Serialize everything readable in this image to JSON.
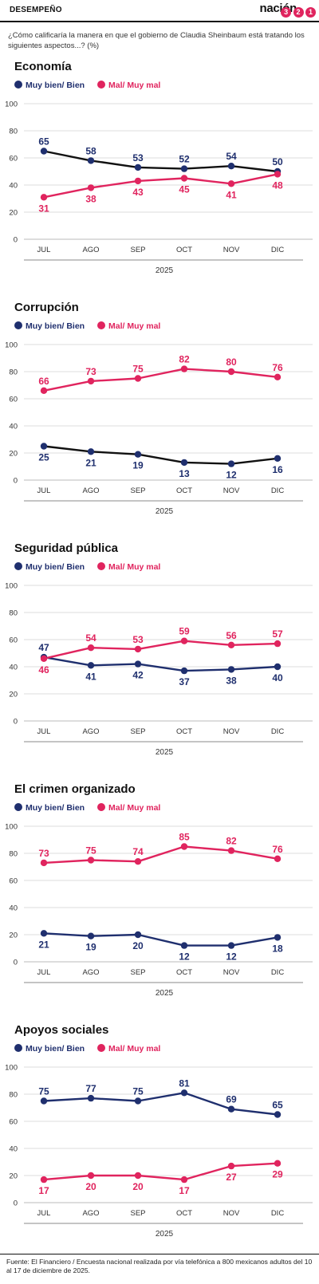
{
  "header": {
    "section": "DESEMPEÑO",
    "brand_word": "nación",
    "brand_digits": [
      "3",
      "2",
      "1"
    ]
  },
  "question": "¿Cómo calificaría la manera en que el gobierno de Claudia Sheinbaum está tratando los siguientes aspectos...? (%)",
  "colors": {
    "muy_bien": "#1f2f6e",
    "mal": "#e0245e",
    "line_black": "#111111",
    "grid": "#dddddd"
  },
  "chart_data": [
    {
      "type": "line",
      "title": "Economía",
      "categories": [
        "JUL",
        "AGO",
        "SEP",
        "OCT",
        "NOV",
        "DIC"
      ],
      "xlabel": "2025",
      "ylim": [
        0,
        100
      ],
      "yticks": [
        0,
        20,
        40,
        60,
        80,
        100
      ],
      "series": [
        {
          "name": "Muy bien/ Bien",
          "values": [
            65,
            58,
            53,
            52,
            54,
            50
          ]
        },
        {
          "name": "Mal/ Muy mal",
          "values": [
            31,
            38,
            43,
            45,
            41,
            48
          ]
        }
      ]
    },
    {
      "type": "line",
      "title": "Corrupción",
      "categories": [
        "JUL",
        "AGO",
        "SEP",
        "OCT",
        "NOV",
        "DIC"
      ],
      "xlabel": "2025",
      "ylim": [
        0,
        100
      ],
      "yticks": [
        0,
        20,
        40,
        60,
        80,
        100
      ],
      "series": [
        {
          "name": "Muy bien/ Bien",
          "values": [
            25,
            21,
            19,
            13,
            12,
            16
          ]
        },
        {
          "name": "Mal/ Muy mal",
          "values": [
            66,
            73,
            75,
            82,
            80,
            76
          ]
        }
      ]
    },
    {
      "type": "line",
      "title": "Seguridad pública",
      "categories": [
        "JUL",
        "AGO",
        "SEP",
        "OCT",
        "NOV",
        "DIC"
      ],
      "xlabel": "2025",
      "ylim": [
        0,
        100
      ],
      "yticks": [
        0,
        20,
        40,
        60,
        80,
        100
      ],
      "series": [
        {
          "name": "Muy bien/ Bien",
          "values": [
            47,
            41,
            42,
            37,
            38,
            40
          ]
        },
        {
          "name": "Mal/ Muy mal",
          "values": [
            46,
            54,
            53,
            59,
            56,
            57
          ]
        }
      ]
    },
    {
      "type": "line",
      "title": "El crimen organizado",
      "categories": [
        "JUL",
        "AGO",
        "SEP",
        "OCT",
        "NOV",
        "DIC"
      ],
      "xlabel": "2025",
      "ylim": [
        0,
        100
      ],
      "yticks": [
        0,
        20,
        40,
        60,
        80,
        100
      ],
      "series": [
        {
          "name": "Muy bien/ Bien",
          "values": [
            21,
            19,
            20,
            12,
            12,
            18
          ]
        },
        {
          "name": "Mal/ Muy mal",
          "values": [
            73,
            75,
            74,
            85,
            82,
            76
          ]
        }
      ]
    },
    {
      "type": "line",
      "title": "Apoyos sociales",
      "categories": [
        "JUL",
        "AGO",
        "SEP",
        "OCT",
        "NOV",
        "DIC"
      ],
      "xlabel": "2025",
      "ylim": [
        0,
        100
      ],
      "yticks": [
        0,
        20,
        40,
        60,
        80,
        100
      ],
      "series": [
        {
          "name": "Muy bien/ Bien",
          "values": [
            75,
            77,
            75,
            81,
            69,
            65
          ]
        },
        {
          "name": "Mal/ Muy mal",
          "values": [
            17,
            20,
            20,
            17,
            27,
            29
          ]
        }
      ]
    }
  ],
  "footer": "Fuente: El Financiero / Encuesta nacional realizada por vía telefónica a 800 mexicanos adultos del 10 al 17 de diciembre de 2025."
}
